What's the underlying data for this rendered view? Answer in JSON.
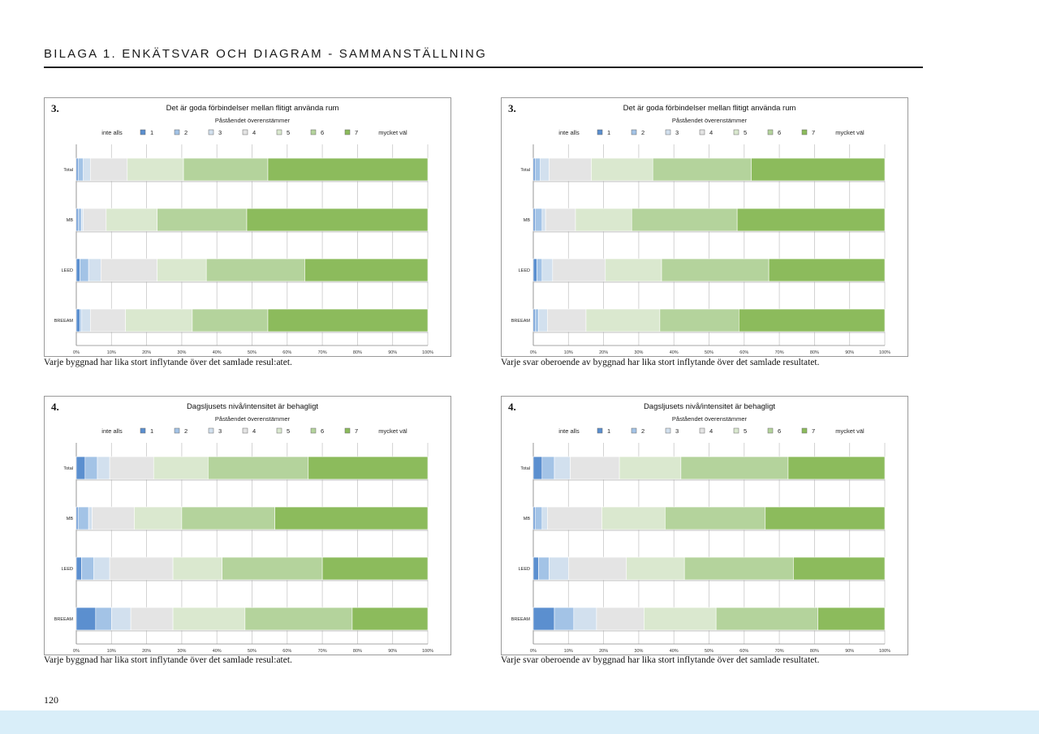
{
  "header": {
    "title": "BILAGA 1. ENKÄTSVAR OCH DIAGRAM - SAMMANSTÄLLNING"
  },
  "page_number": "120",
  "colors": {
    "cat1": "#5b8fcf",
    "cat2": "#a3c3e6",
    "cat3": "#d2e0ee",
    "cat4": "#e4e4e4",
    "cat5": "#dae8cf",
    "cat6": "#b4d39c",
    "cat7": "#8cbb5c",
    "grid": "#c8c8c8"
  },
  "captions": {
    "top_left": "Varje byggnad har lika stort inflytande över det samlade resul:atet.",
    "top_right": "Varje svar oberoende av byggnad har lika stort inflytande över det samlade resultatet.",
    "bottom_left": "Varje byggnad har lika stort inflytande över det samlade resul:atet.",
    "bottom_right": "Varje svar oberoende av byggnad har lika stort inflytande över det samlade resultatet."
  },
  "chart_data": [
    {
      "number": "3.",
      "type": "bar",
      "stacked": true,
      "orientation": "horizontal",
      "title": "Det är goda förbindelser mellan flitigt använda rum",
      "subtitle": "Påståendet överenstämmer",
      "legend": {
        "prefix": "inte alls",
        "suffix": "mycket väl",
        "entries": [
          "1",
          "2",
          "3",
          "4",
          "5",
          "6",
          "7"
        ]
      },
      "categories": [
        "Total",
        "MB",
        "LEED",
        "BREEAM"
      ],
      "x_ticks": [
        "0%",
        "10%",
        "20%",
        "30%",
        "40%",
        "50%",
        "60%",
        "70%",
        "80%",
        "90%",
        "100%"
      ],
      "xlim": [
        0,
        100
      ],
      "series": [
        {
          "name": "1",
          "values": [
            0.5,
            0.5,
            1.0,
            1.0
          ]
        },
        {
          "name": "2",
          "values": [
            1.5,
            1.0,
            2.5,
            0.5
          ]
        },
        {
          "name": "3",
          "values": [
            2.0,
            0.5,
            3.5,
            2.5
          ]
        },
        {
          "name": "4",
          "values": [
            10.5,
            6.5,
            16.0,
            10.0
          ]
        },
        {
          "name": "5",
          "values": [
            16.0,
            14.5,
            14.0,
            19.0
          ]
        },
        {
          "name": "6",
          "values": [
            24.0,
            25.5,
            28.0,
            21.5
          ]
        },
        {
          "name": "7",
          "values": [
            45.5,
            51.5,
            35.0,
            45.5
          ]
        }
      ]
    },
    {
      "number": "3.",
      "type": "bar",
      "stacked": true,
      "orientation": "horizontal",
      "title": "Det är goda förbindelser mellan flitigt använda rum",
      "subtitle": "Påståendet överenstämmer",
      "legend": {
        "prefix": "inte alls",
        "suffix": "mycket väl",
        "entries": [
          "1",
          "2",
          "3",
          "4",
          "5",
          "6",
          "7"
        ]
      },
      "categories": [
        "Total",
        "MB",
        "LEED",
        "BREEAM"
      ],
      "x_ticks": [
        "0%",
        "10%",
        "20%",
        "30%",
        "40%",
        "50%",
        "60%",
        "70%",
        "80%",
        "90%",
        "100%"
      ],
      "xlim": [
        0,
        100
      ],
      "series": [
        {
          "name": "1",
          "values": [
            0.5,
            0.5,
            1.0,
            0.5
          ]
        },
        {
          "name": "2",
          "values": [
            1.5,
            2.0,
            1.5,
            1.0
          ]
        },
        {
          "name": "3",
          "values": [
            2.5,
            1.0,
            3.0,
            2.5
          ]
        },
        {
          "name": "4",
          "values": [
            12.0,
            8.5,
            15.0,
            11.0
          ]
        },
        {
          "name": "5",
          "values": [
            17.5,
            16.0,
            16.0,
            21.0
          ]
        },
        {
          "name": "6",
          "values": [
            28.0,
            30.0,
            30.5,
            22.5
          ]
        },
        {
          "name": "7",
          "values": [
            38.0,
            42.0,
            33.0,
            41.5
          ]
        }
      ]
    },
    {
      "number": "4.",
      "type": "bar",
      "stacked": true,
      "orientation": "horizontal",
      "title": "Dagsljusets nivå/intensitet är behagligt",
      "subtitle": "Påståendet överenstämmer",
      "legend": {
        "prefix": "inte alls",
        "suffix": "mycket väl",
        "entries": [
          "1",
          "2",
          "3",
          "4",
          "5",
          "6",
          "7"
        ]
      },
      "categories": [
        "Total",
        "MB",
        "LEED",
        "BREEAM"
      ],
      "x_ticks": [
        "0%",
        "10%",
        "20%",
        "30%",
        "40%",
        "50%",
        "60%",
        "70%",
        "80%",
        "90%",
        "100%"
      ],
      "xlim": [
        0,
        100
      ],
      "series": [
        {
          "name": "1",
          "values": [
            2.5,
            0.5,
            1.5,
            5.5
          ]
        },
        {
          "name": "2",
          "values": [
            3.5,
            3.0,
            3.5,
            4.5
          ]
        },
        {
          "name": "3",
          "values": [
            3.5,
            1.0,
            4.5,
            5.5
          ]
        },
        {
          "name": "4",
          "values": [
            12.5,
            12.0,
            18.0,
            12.0
          ]
        },
        {
          "name": "5",
          "values": [
            15.5,
            13.5,
            14.0,
            20.5
          ]
        },
        {
          "name": "6",
          "values": [
            28.5,
            26.5,
            28.5,
            30.5
          ]
        },
        {
          "name": "7",
          "values": [
            34.0,
            43.5,
            30.0,
            21.5
          ]
        }
      ]
    },
    {
      "number": "4.",
      "type": "bar",
      "stacked": true,
      "orientation": "horizontal",
      "title": "Dagsljusets nivå/intensitet är behagligt",
      "subtitle": "Påståendet överenstämmer",
      "legend": {
        "prefix": "inte alls",
        "suffix": "mycket väl",
        "entries": [
          "1",
          "2",
          "3",
          "4",
          "5",
          "6",
          "7"
        ]
      },
      "categories": [
        "Total",
        "MB",
        "LEED",
        "BREEAM"
      ],
      "x_ticks": [
        "0%",
        "10%",
        "20%",
        "30%",
        "40%",
        "50%",
        "60%",
        "70%",
        "80%",
        "90%",
        "100%"
      ],
      "xlim": [
        0,
        100
      ],
      "series": [
        {
          "name": "1",
          "values": [
            2.5,
            0.5,
            1.5,
            6.0
          ]
        },
        {
          "name": "2",
          "values": [
            3.5,
            2.0,
            3.0,
            5.5
          ]
        },
        {
          "name": "3",
          "values": [
            4.5,
            1.5,
            5.5,
            6.5
          ]
        },
        {
          "name": "4",
          "values": [
            14.0,
            15.5,
            16.5,
            13.5
          ]
        },
        {
          "name": "5",
          "values": [
            17.5,
            18.0,
            16.5,
            20.5
          ]
        },
        {
          "name": "6",
          "values": [
            30.5,
            28.5,
            31.0,
            29.0
          ]
        },
        {
          "name": "7",
          "values": [
            27.5,
            34.0,
            26.0,
            19.0
          ]
        }
      ]
    }
  ]
}
